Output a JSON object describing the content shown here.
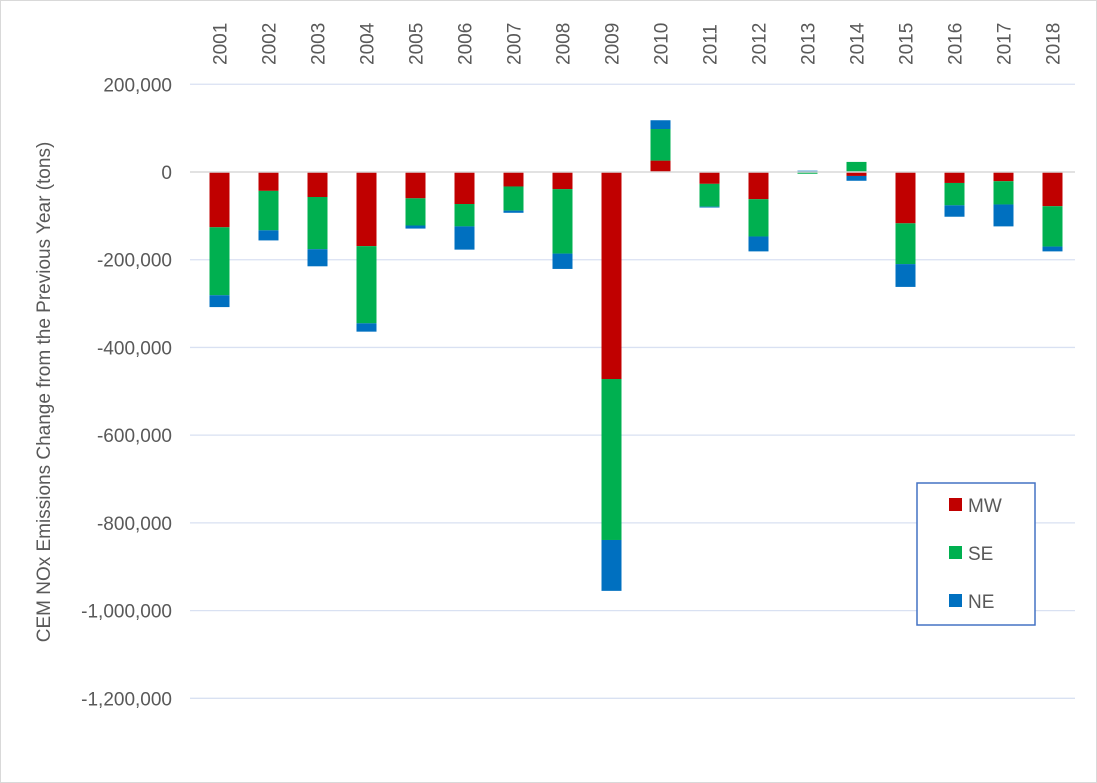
{
  "chart_data": {
    "type": "bar",
    "stacked": true,
    "title": "",
    "xlabel": "",
    "ylabel": "CEM NOx Emissions Change from the Previous Year (tons)",
    "ylim": [
      -1200000,
      200000
    ],
    "yticks": [
      200000,
      0,
      -200000,
      -400000,
      -600000,
      -800000,
      -1000000,
      -1200000
    ],
    "ytick_labels": [
      "200,000",
      "0",
      "-200,000",
      "-400,000",
      "-600,000",
      "-800,000",
      "-1,000,000",
      "-1,200,000"
    ],
    "grid": true,
    "legend_position": "bottom-right",
    "categories": [
      "2001",
      "2002",
      "2003",
      "2004",
      "2005",
      "2006",
      "2007",
      "2008",
      "2009",
      "2010",
      "2011",
      "2012",
      "2013",
      "2014",
      "2015",
      "2016",
      "2017",
      "2018"
    ],
    "series": [
      {
        "name": "MW",
        "color": "#C00000",
        "values": [
          -126000,
          -43000,
          -57000,
          -169000,
          -60000,
          -73000,
          -33000,
          -39000,
          -472000,
          26000,
          -27000,
          -62000,
          -1000,
          -9000,
          -117000,
          -25000,
          -21000,
          -78000
        ]
      },
      {
        "name": "SE",
        "color": "#00B050",
        "values": [
          -155000,
          -90000,
          -119000,
          -176000,
          -62000,
          -51000,
          -55000,
          -147000,
          -367000,
          72000,
          -52000,
          -85000,
          -3000,
          23000,
          -93000,
          -51000,
          -53000,
          -92000
        ]
      },
      {
        "name": "NE",
        "color": "#0070C0",
        "values": [
          -27000,
          -23000,
          -39000,
          -19000,
          -7000,
          -53000,
          -5000,
          -35000,
          -116000,
          20000,
          -2000,
          -34000,
          3000,
          -11000,
          -52000,
          -26000,
          -50000,
          -11000
        ]
      }
    ]
  }
}
